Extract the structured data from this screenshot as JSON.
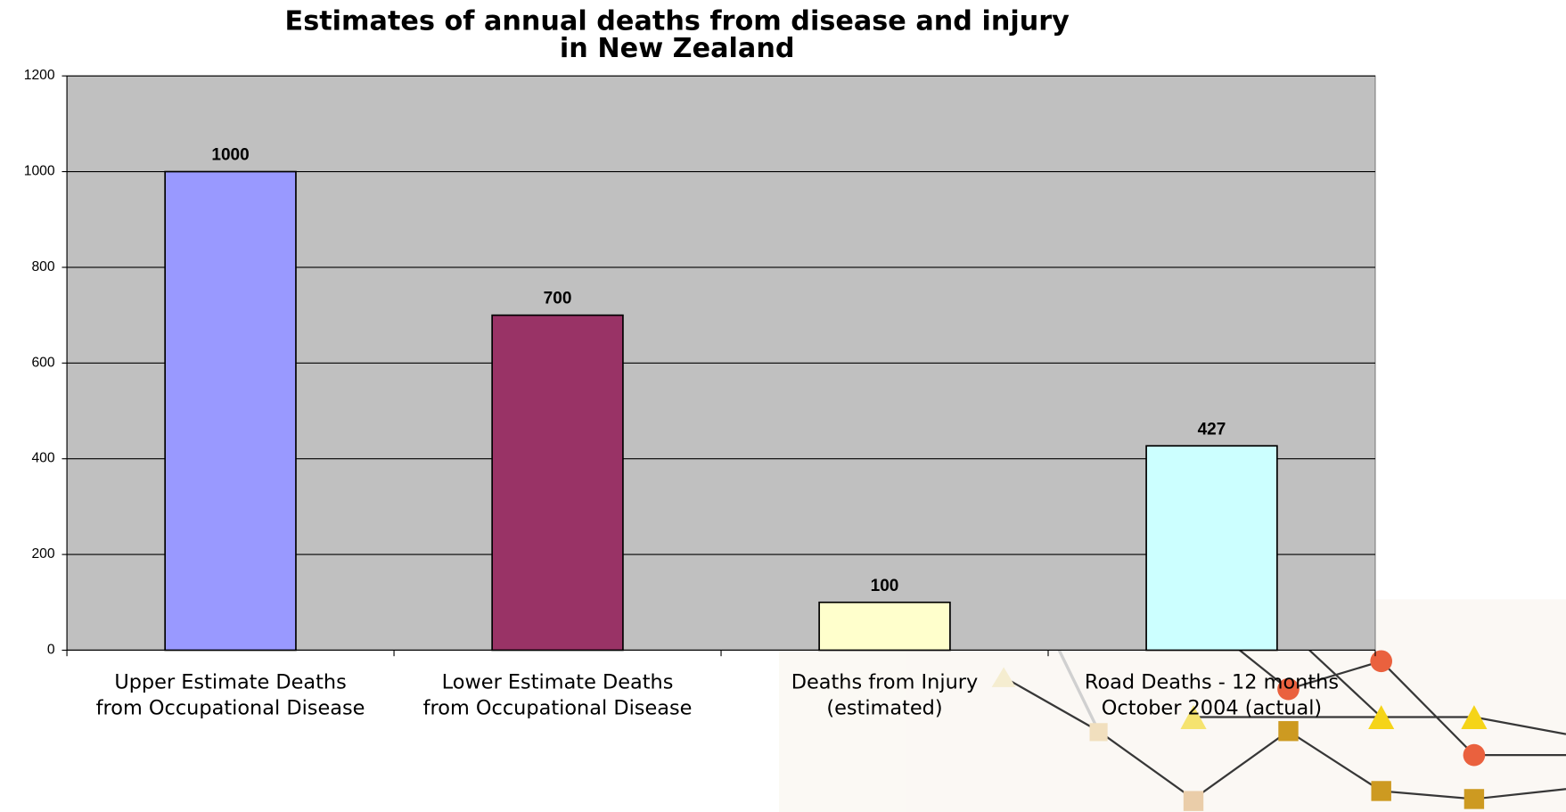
{
  "chart_data": {
    "type": "bar",
    "title": "Estimates of annual deaths from disease and injury\nin New Zealand",
    "categories": [
      "Upper Estimate Deaths\nfrom Occupational Disease",
      "Lower Estimate Deaths\nfrom Occupational Disease",
      "Deaths from Injury\n(estimated)",
      "Road Deaths - 12 months\nOctober 2004 (actual)"
    ],
    "values": [
      1000,
      700,
      100,
      427
    ],
    "colors": [
      "#9999ff",
      "#993366",
      "#ffffcc",
      "#ccffff"
    ],
    "ylim": [
      0,
      1200
    ],
    "yticks": [
      0,
      200,
      400,
      600,
      800,
      1000,
      1200
    ],
    "grid": true
  }
}
